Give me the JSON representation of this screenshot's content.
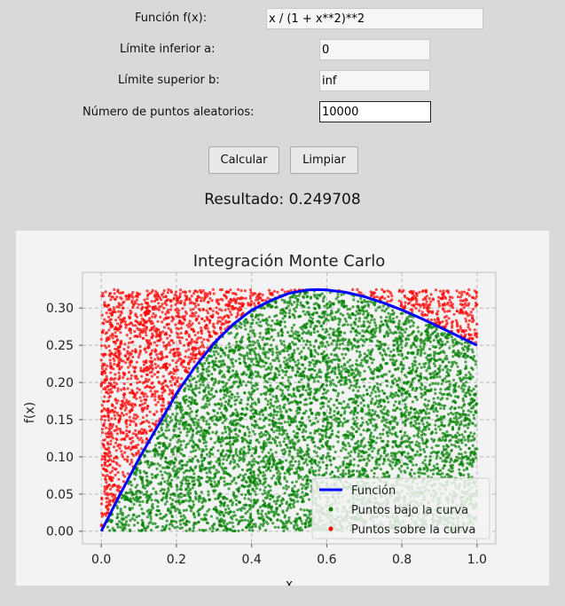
{
  "form": {
    "function_label": "Función f(x):",
    "function_value": "x / (1 + x**2)**2",
    "lower_label": "Límite inferior a:",
    "lower_value": "0",
    "upper_label": "Límite superior b:",
    "upper_value": "inf",
    "points_label": "Número de puntos aleatorios:",
    "points_value": "10000"
  },
  "buttons": {
    "calculate": "Calcular",
    "clear": "Limpiar"
  },
  "result_text": "Resultado: 0.249708",
  "colors": {
    "function_line": "#0000ff",
    "points_below": "#008000",
    "points_above": "#ff0000"
  },
  "chart_data": {
    "type": "scatter",
    "title": "Integración Monte Carlo",
    "xlabel": "x",
    "ylabel": "f(x)",
    "xlim": [
      -0.05,
      1.05
    ],
    "ylim": [
      -0.017,
      0.348
    ],
    "xticks": [
      "0.0",
      "0.2",
      "0.4",
      "0.6",
      "0.8",
      "1.0"
    ],
    "yticks": [
      "0.00",
      "0.05",
      "0.10",
      "0.15",
      "0.20",
      "0.25",
      "0.30"
    ],
    "grid": true,
    "legend_position": "lower-right",
    "point_count": 10000,
    "x_range": [
      0,
      1
    ],
    "y_range": [
      0,
      0.325
    ],
    "curve": {
      "name": "Función",
      "x": [
        0,
        0.05,
        0.1,
        0.15,
        0.2,
        0.25,
        0.3,
        0.35,
        0.4,
        0.45,
        0.5,
        0.55,
        0.577,
        0.6,
        0.65,
        0.7,
        0.75,
        0.8,
        0.85,
        0.9,
        0.95,
        1.0
      ],
      "y": [
        0,
        0.0496,
        0.0971,
        0.141,
        0.1849,
        0.2215,
        0.2529,
        0.2779,
        0.2972,
        0.3099,
        0.32,
        0.3244,
        0.3248,
        0.3244,
        0.3213,
        0.3154,
        0.3072,
        0.2976,
        0.2865,
        0.2745,
        0.2624,
        0.25
      ]
    },
    "series": [
      {
        "name": "Función"
      },
      {
        "name": "Puntos bajo la curva"
      },
      {
        "name": "Puntos sobre la curva"
      }
    ]
  }
}
